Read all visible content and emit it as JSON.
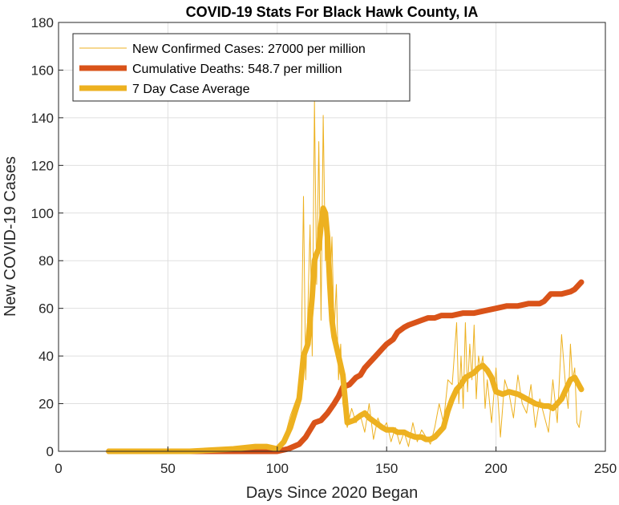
{
  "chart_data": {
    "type": "line",
    "title": "COVID-19 Stats For Black Hawk County, IA",
    "xlabel": "Days Since 2020 Began",
    "ylabel": "New COVID-19 Cases",
    "xlim": [
      0,
      250
    ],
    "ylim": [
      0,
      180
    ],
    "xticks": [
      0,
      50,
      100,
      150,
      200,
      250
    ],
    "yticks": [
      0,
      20,
      40,
      60,
      80,
      100,
      120,
      140,
      160,
      180
    ],
    "grid": true,
    "legend_position": "top-left",
    "series": [
      {
        "name": "New Confirmed Cases: 27000 per million",
        "color": "#EDB120",
        "width": "thin",
        "x": [
          23,
          40,
          60,
          80,
          85,
          90,
          95,
          100,
          102,
          104,
          106,
          108,
          110,
          111,
          112,
          113,
          114,
          115,
          116,
          117,
          118,
          119,
          120,
          121,
          122,
          123,
          124,
          125,
          126,
          127,
          128,
          129,
          130,
          132,
          134,
          136,
          138,
          140,
          142,
          144,
          146,
          148,
          150,
          152,
          154,
          156,
          158,
          160,
          162,
          164,
          166,
          168,
          170,
          172,
          174,
          176,
          178,
          180,
          182,
          183,
          184,
          185,
          186,
          187,
          188,
          189,
          190,
          191,
          192,
          193,
          194,
          195,
          196,
          198,
          200,
          202,
          204,
          206,
          208,
          210,
          212,
          214,
          216,
          218,
          220,
          222,
          224,
          226,
          228,
          230,
          232,
          233,
          234,
          235,
          236,
          237,
          238,
          239
        ],
        "y": [
          0,
          0,
          0,
          0,
          1,
          2,
          1,
          0,
          3,
          8,
          15,
          20,
          25,
          40,
          107,
          30,
          60,
          95,
          40,
          147,
          70,
          130,
          55,
          141,
          80,
          100,
          65,
          90,
          50,
          70,
          30,
          45,
          20,
          10,
          18,
          12,
          15,
          8,
          20,
          5,
          14,
          9,
          12,
          4,
          10,
          3,
          8,
          2,
          12,
          4,
          9,
          6,
          3,
          10,
          20,
          12,
          30,
          28,
          54,
          20,
          40,
          18,
          54,
          25,
          45,
          30,
          53,
          22,
          40,
          35,
          40,
          18,
          30,
          12,
          35,
          6,
          30,
          24,
          14,
          32,
          20,
          16,
          28,
          10,
          22,
          15,
          8,
          30,
          12,
          49,
          25,
          18,
          45,
          30,
          35,
          12,
          10,
          17
        ]
      },
      {
        "name": "Cumulative Deaths: 548.7 per million",
        "color": "#D95319",
        "width": "thick",
        "x": [
          23,
          100,
          105,
          110,
          113,
          115,
          117,
          120,
          123,
          126,
          128,
          130,
          133,
          136,
          138,
          140,
          142,
          145,
          148,
          150,
          153,
          155,
          158,
          160,
          163,
          166,
          169,
          172,
          175,
          180,
          185,
          190,
          195,
          200,
          205,
          210,
          215,
          220,
          222,
          225,
          230,
          234,
          236,
          239
        ],
        "y": [
          0,
          0,
          1,
          3,
          6,
          9,
          12,
          13,
          16,
          20,
          23,
          27,
          28,
          31,
          32,
          35,
          37,
          40,
          43,
          45,
          47,
          50,
          52,
          53,
          54,
          55,
          56,
          56,
          57,
          57,
          58,
          58,
          59,
          60,
          61,
          61,
          62,
          62,
          63,
          66,
          66,
          67,
          68,
          71
        ]
      },
      {
        "name": "7 Day Case Average",
        "color": "#EDB120",
        "width": "thick",
        "x": [
          23,
          60,
          80,
          90,
          95,
          100,
          103,
          106,
          108,
          110,
          112,
          114,
          116,
          117,
          118,
          119,
          120,
          121,
          122,
          123,
          124,
          125,
          126,
          128,
          130,
          132,
          135,
          138,
          140,
          142,
          145,
          148,
          150,
          153,
          155,
          158,
          160,
          163,
          166,
          168,
          170,
          172,
          174,
          176,
          178,
          180,
          182,
          184,
          186,
          188,
          190,
          192,
          194,
          196,
          198,
          200,
          203,
          206,
          210,
          214,
          218,
          222,
          224,
          226,
          228,
          230,
          232,
          234,
          236,
          239
        ],
        "y": [
          0,
          0,
          1,
          2,
          2,
          1,
          4,
          10,
          16,
          22,
          40,
          45,
          65,
          80,
          83,
          85,
          95,
          102,
          100,
          90,
          70,
          55,
          48,
          40,
          32,
          12,
          13,
          15,
          16,
          14,
          12,
          10,
          9,
          9,
          8,
          8,
          7,
          6,
          6,
          5,
          5,
          6,
          8,
          10,
          17,
          22,
          26,
          28,
          31,
          32,
          33,
          35,
          36,
          34,
          31,
          25,
          24,
          25,
          24,
          22,
          20,
          19,
          19,
          18,
          20,
          22,
          26,
          30,
          31,
          26
        ]
      }
    ]
  }
}
